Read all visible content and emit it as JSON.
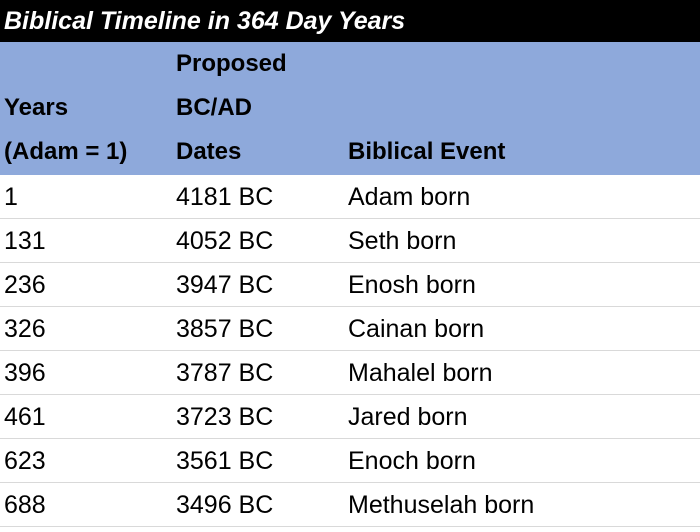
{
  "table": {
    "title": "Biblical Timeline in 364 Day Years",
    "header": [
      [
        "Years",
        "(Adam = 1)"
      ],
      [
        "Proposed",
        "BC/AD",
        "Dates"
      ],
      [
        "Biblical Event"
      ]
    ],
    "rows": [
      [
        1,
        "4181 BC",
        "Adam born"
      ],
      [
        131,
        "4052 BC",
        "Seth born"
      ],
      [
        236,
        "3947 BC",
        "Enosh born"
      ],
      [
        326,
        "3857 BC",
        "Cainan born"
      ],
      [
        396,
        "3787 BC",
        "Mahalel born"
      ],
      [
        461,
        "3723 BC",
        "Jared born"
      ],
      [
        623,
        "3561 BC",
        "Enoch born"
      ],
      [
        688,
        "3496 BC",
        "Methuselah born"
      ]
    ]
  }
}
